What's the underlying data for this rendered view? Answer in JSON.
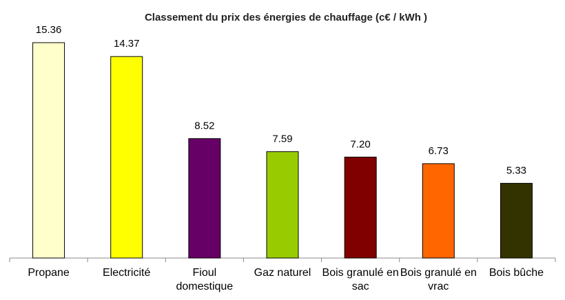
{
  "chart_data": {
    "type": "bar",
    "title": "Classement du prix des énergies de chauffage (c€ / kWh )",
    "categories": [
      "Propane",
      "Electricité",
      "Fioul domestique",
      "Gaz naturel",
      "Bois granulé en sac",
      "Bois granulé en vrac",
      "Bois bûche"
    ],
    "values": [
      15.36,
      14.37,
      8.52,
      7.59,
      7.2,
      6.73,
      5.33
    ],
    "value_labels": [
      "15.36",
      "14.37",
      "8.52",
      "7.59",
      "7.20",
      "6.73",
      "5.33"
    ],
    "colors": [
      "#ffffcc",
      "#ffff00",
      "#660066",
      "#99cc00",
      "#800000",
      "#ff6600",
      "#333300"
    ]
  }
}
